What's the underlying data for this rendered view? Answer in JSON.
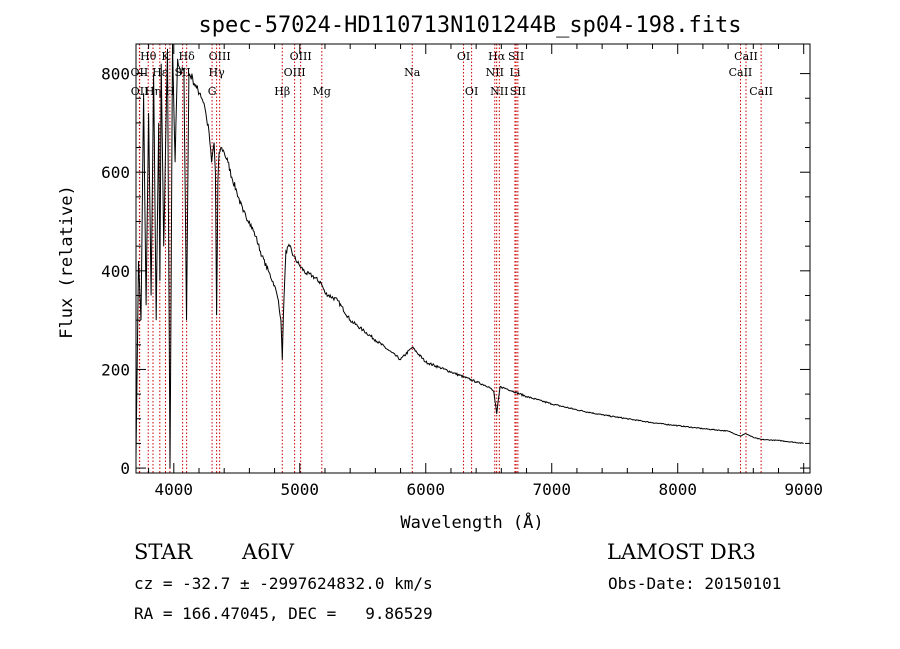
{
  "chart_data": {
    "type": "line",
    "title": "spec-57024-HD110713N101244B_sp04-198.fits",
    "xlabel": "Wavelength (Å)",
    "ylabel": "Flux (relative)",
    "xlim": [
      3700,
      9050
    ],
    "ylim": [
      -10,
      860
    ],
    "x_ticks": [
      4000,
      5000,
      6000,
      7000,
      8000,
      9000
    ],
    "x_tick_labels": [
      "4000",
      "5000",
      "6000",
      "7000",
      "8000",
      "9000"
    ],
    "y_ticks": [
      0,
      200,
      400,
      600,
      800
    ],
    "y_tick_labels": [
      "0",
      "200",
      "400",
      "600",
      "800"
    ],
    "series": [
      {
        "name": "spectrum",
        "x": [
          3700,
          3720,
          3740,
          3760,
          3780,
          3800,
          3820,
          3840,
          3860,
          3880,
          3890,
          3900,
          3920,
          3950,
          3970,
          3990,
          4010,
          4030,
          4060,
          4080,
          4101,
          4120,
          4150,
          4180,
          4210,
          4240,
          4260,
          4280,
          4300,
          4320,
          4330,
          4340,
          4350,
          4360,
          4380,
          4400,
          4430,
          4460,
          4500,
          4550,
          4600,
          4650,
          4700,
          4750,
          4800,
          4830,
          4850,
          4861,
          4870,
          4890,
          4920,
          4950,
          5000,
          5050,
          5100,
          5170,
          5200,
          5300,
          5400,
          5500,
          5600,
          5700,
          5800,
          5893,
          6000,
          6100,
          6200,
          6300,
          6400,
          6500,
          6540,
          6563,
          6590,
          6650,
          6800,
          7000,
          7200,
          7400,
          7600,
          7800,
          8000,
          8200,
          8400,
          8498,
          8542,
          8600,
          8662,
          8800,
          9000
        ],
        "y": [
          20,
          420,
          300,
          760,
          330,
          720,
          350,
          800,
          300,
          700,
          380,
          820,
          450,
          850,
          0,
          860,
          620,
          830,
          800,
          810,
          300,
          800,
          790,
          770,
          760,
          740,
          710,
          680,
          620,
          660,
          600,
          310,
          580,
          640,
          650,
          640,
          620,
          590,
          560,
          520,
          500,
          470,
          430,
          400,
          370,
          340,
          300,
          220,
          310,
          440,
          450,
          430,
          410,
          395,
          390,
          375,
          355,
          340,
          300,
          280,
          260,
          240,
          220,
          245,
          215,
          205,
          195,
          185,
          175,
          165,
          155,
          110,
          165,
          160,
          145,
          130,
          118,
          108,
          100,
          92,
          86,
          80,
          75,
          65,
          70,
          62,
          58,
          56,
          50
        ]
      }
    ],
    "lines": [
      {
        "label": "Hθ",
        "x": 3797,
        "row": 0
      },
      {
        "label": "OII",
        "x": 3727,
        "row": 1
      },
      {
        "label": "OII",
        "x": 3729,
        "row": 2
      },
      {
        "label": "Hη",
        "x": 3835,
        "row": 2
      },
      {
        "label": "Hε",
        "x": 3889,
        "row": 1
      },
      {
        "label": "K",
        "x": 3934,
        "row": 0
      },
      {
        "label": "H",
        "x": 3969,
        "row": 2
      },
      {
        "label": "SII",
        "x": 4070,
        "row": 1
      },
      {
        "label": "Hδ",
        "x": 4102,
        "row": 0
      },
      {
        "label": "OIII",
        "x": 4364,
        "row": 0
      },
      {
        "label": "Hγ",
        "x": 4340,
        "row": 1
      },
      {
        "label": "G",
        "x": 4304,
        "row": 2
      },
      {
        "label": "Hβ",
        "x": 4861,
        "row": 2
      },
      {
        "label": "OIII",
        "x": 5007,
        "row": 0
      },
      {
        "label": "OIII",
        "x": 4959,
        "row": 1
      },
      {
        "label": "Mg",
        "x": 5175,
        "row": 2
      },
      {
        "label": "Na",
        "x": 5893,
        "row": 1
      },
      {
        "label": "OI",
        "x": 6300,
        "row": 0
      },
      {
        "label": "OI",
        "x": 6364,
        "row": 2
      },
      {
        "label": "Hα",
        "x": 6563,
        "row": 0
      },
      {
        "label": "SII",
        "x": 6717,
        "row": 0
      },
      {
        "label": "NII",
        "x": 6548,
        "row": 1
      },
      {
        "label": "Li",
        "x": 6708,
        "row": 1
      },
      {
        "label": "NII",
        "x": 6584,
        "row": 2
      },
      {
        "label": "SII",
        "x": 6731,
        "row": 2
      },
      {
        "label": "CaII",
        "x": 8542,
        "row": 0
      },
      {
        "label": "CaII",
        "x": 8498,
        "row": 1
      },
      {
        "label": "CaII",
        "x": 8662,
        "row": 2
      }
    ],
    "line_color": "#cc0000"
  },
  "info": {
    "object_class": "STAR",
    "subclass": "A6IV",
    "survey": "LAMOST DR3",
    "cz": "cz = -32.7 ± -2997624832.0 km/s",
    "obs_date": "Obs-Date: 20150101",
    "coords": "RA = 166.47045, DEC =   9.86529"
  }
}
